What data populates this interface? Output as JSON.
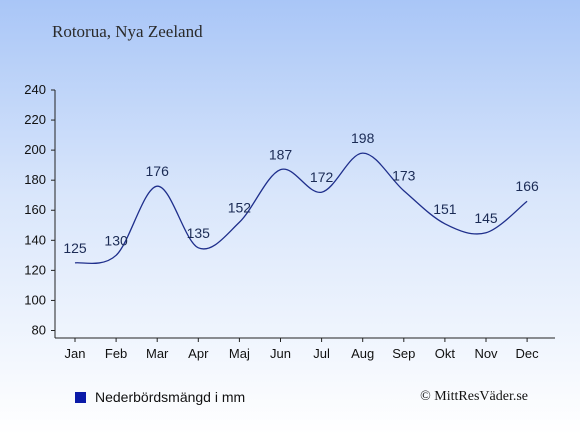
{
  "header": {
    "location": "Rotorua, Nya Zeeland"
  },
  "legend": {
    "label": "Nederbördsmängd i mm",
    "color": "#0a1aa8"
  },
  "footer": {
    "copyright": "© MittResVäder.se"
  },
  "chart_data": {
    "type": "line",
    "categories": [
      "Jan",
      "Feb",
      "Mar",
      "Apr",
      "Maj",
      "Jun",
      "Jul",
      "Aug",
      "Sep",
      "Okt",
      "Nov",
      "Dec"
    ],
    "series": [
      {
        "name": "Nederbördsmängd i mm",
        "values": [
          125,
          130,
          176,
          135,
          152,
          187,
          172,
          198,
          173,
          151,
          145,
          166
        ],
        "color": "#1f2f8c"
      }
    ],
    "yticks": [
      80,
      100,
      120,
      140,
      160,
      180,
      200,
      220,
      240
    ],
    "ylim": [
      75,
      240
    ],
    "grid": false,
    "legend_position": "bottom-left"
  }
}
